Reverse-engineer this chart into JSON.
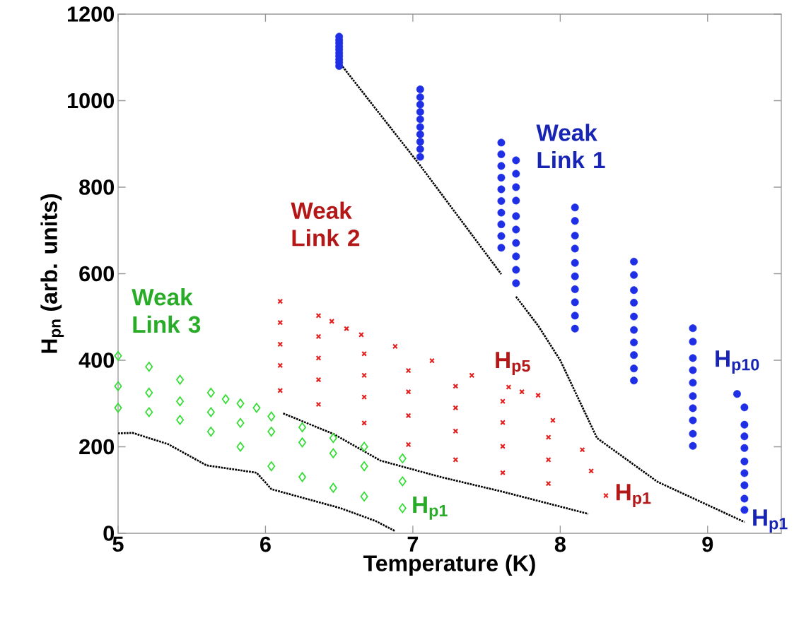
{
  "chart_data": {
    "type": "scatter",
    "xlabel": "Temperature (K)",
    "ylabel": "H$_{pn}$ (arb. units)",
    "xlim": [
      5,
      9.5
    ],
    "ylim": [
      0,
      1200
    ],
    "xticks": [
      5,
      6,
      7,
      8,
      9
    ],
    "yticks": [
      0,
      200,
      400,
      600,
      800,
      1000,
      1200
    ],
    "series": [
      {
        "name": "H$_{p1}$",
        "marker": "diamond",
        "color": "#33dd33",
        "x": [
          5,
          5.21,
          5.42,
          5.63,
          5.83,
          6.04,
          6.25,
          6.46,
          6.67,
          6.93
        ],
        "values": [
          290,
          280,
          262,
          235,
          200,
          155,
          130,
          105,
          85,
          58
        ]
      },
      {
        "marker": "diamond",
        "color": "#33dd33",
        "x": [
          5,
          5.21,
          5.42,
          5.63,
          5.83,
          6.04,
          6.25,
          6.46,
          6.67,
          6.93
        ],
        "values": [
          340,
          325,
          305,
          280,
          255,
          235,
          210,
          185,
          155,
          120
        ]
      },
      {
        "marker": "diamond",
        "color": "#33dd33",
        "x": [
          5,
          5.21,
          5.42,
          5.63,
          5.73,
          5.83,
          5.94,
          6.04,
          6.25,
          6.46,
          6.67,
          6.93
        ],
        "values": [
          410,
          385,
          355,
          325,
          310,
          300,
          290,
          270,
          245,
          220,
          200,
          173
        ]
      },
      {
        "type": "line",
        "line_style": "dotted",
        "color": "#000000",
        "x": [
          5,
          5.1,
          5.34,
          5.6,
          5.94,
          6.04,
          6.51,
          6.75,
          6.88
        ],
        "values": [
          231,
          232,
          206,
          157,
          140,
          102,
          58,
          28,
          5
        ]
      },
      {
        "name": "H$_{p1}$",
        "marker": "cross",
        "color": "#e61e1e",
        "x": [
          6.1,
          6.36,
          6.67,
          6.97,
          7.29,
          7.61,
          7.92,
          8.31
        ],
        "values": [
          330,
          298,
          255,
          205,
          170,
          140,
          115,
          87
        ]
      },
      {
        "marker": "cross",
        "color": "#e61e1e",
        "x": [
          6.1,
          6.36,
          6.67,
          6.97,
          7.29,
          7.61,
          7.92,
          8.21
        ],
        "values": [
          388,
          355,
          315,
          272,
          236,
          201,
          170,
          144
        ]
      },
      {
        "marker": "cross",
        "color": "#e61e1e",
        "x": [
          6.1,
          6.36,
          6.67,
          6.97,
          7.29,
          7.61,
          7.92,
          8.15
        ],
        "values": [
          437,
          405,
          365,
          327,
          290,
          256,
          222,
          193
        ]
      },
      {
        "marker": "cross",
        "color": "#e61e1e",
        "x": [
          6.1,
          6.36,
          6.67,
          6.97,
          7.29,
          7.61,
          7.95
        ],
        "values": [
          487,
          455,
          415,
          376,
          340,
          305,
          261
        ]
      },
      {
        "name": "H$_{p5}$",
        "marker": "cross",
        "color": "#e61e1e",
        "x": [
          6.1,
          6.36,
          6.45,
          6.55,
          6.65,
          6.88,
          7.13,
          7.4,
          7.65,
          7.74,
          7.85
        ],
        "values": [
          536,
          503,
          490,
          473,
          459,
          432,
          399,
          365,
          338,
          327,
          319
        ]
      },
      {
        "type": "line",
        "line_style": "dotted",
        "color": "#000000",
        "x": [
          6.12,
          6.46,
          6.78,
          7.19,
          7.61,
          8.19
        ],
        "values": [
          277,
          230,
          168,
          130,
          96,
          45
        ]
      },
      {
        "name": "H$_{p1}$",
        "marker": "circle",
        "color": "#1f2fe6",
        "x": [
          6.5,
          7.05,
          7.6,
          7.7,
          8.1,
          8.5,
          8.9,
          9.25
        ],
        "values": [
          1080,
          870,
          660,
          578,
          473,
          353,
          202,
          54
        ]
      },
      {
        "marker": "circle",
        "color": "#1f2fe6",
        "x": [
          6.5,
          7.05,
          7.6,
          7.7,
          8.1,
          8.5,
          8.9,
          9.25
        ],
        "values": [
          1088,
          888,
          687,
          609,
          503,
          381,
          230,
          80
        ]
      },
      {
        "marker": "circle",
        "color": "#1f2fe6",
        "x": [
          6.5,
          7.05,
          7.6,
          7.7,
          8.1,
          8.5,
          8.9,
          9.25
        ],
        "values": [
          1095,
          905,
          714,
          640,
          534,
          412,
          261,
          111
        ]
      },
      {
        "marker": "circle",
        "color": "#1f2fe6",
        "x": [
          6.5,
          7.05,
          7.6,
          7.7,
          8.1,
          8.5,
          8.9,
          9.25
        ],
        "values": [
          1103,
          922,
          741,
          671,
          564,
          441,
          289,
          139
        ]
      },
      {
        "marker": "circle",
        "color": "#1f2fe6",
        "x": [
          6.5,
          7.05,
          7.6,
          7.7,
          8.1,
          8.5,
          8.9,
          9.25
        ],
        "values": [
          1110,
          939,
          768,
          702,
          594,
          470,
          317,
          166
        ]
      },
      {
        "marker": "circle",
        "color": "#1f2fe6",
        "x": [
          6.5,
          7.05,
          7.6,
          7.7,
          8.1,
          8.5,
          8.9,
          9.25
        ],
        "values": [
          1118,
          957,
          795,
          733,
          625,
          501,
          348,
          197
        ]
      },
      {
        "marker": "circle",
        "color": "#1f2fe6",
        "x": [
          6.5,
          7.05,
          7.6,
          7.7,
          8.1,
          8.5,
          8.9,
          9.25
        ],
        "values": [
          1125,
          974,
          822,
          769,
          658,
          533,
          377,
          224
        ]
      },
      {
        "marker": "circle",
        "color": "#1f2fe6",
        "x": [
          6.5,
          7.05,
          7.6,
          7.7,
          8.1,
          8.5,
          8.9,
          9.25
        ],
        "values": [
          1133,
          991,
          849,
          800,
          688,
          562,
          405,
          251
        ]
      },
      {
        "marker": "circle",
        "color": "#1f2fe6",
        "x": [
          6.5,
          7.05,
          7.6,
          7.7,
          8.1,
          8.5,
          8.9,
          9.25
        ],
        "values": [
          1140,
          1008,
          876,
          831,
          722,
          597,
          443,
          291
        ]
      },
      {
        "name": "H$_{p10}$",
        "marker": "circle",
        "color": "#1f2fe6",
        "x": [
          6.5,
          7.05,
          7.6,
          7.7,
          8.1,
          8.5,
          8.9,
          9.2
        ],
        "values": [
          1148,
          1026,
          903,
          862,
          753,
          628,
          474,
          322
        ]
      },
      {
        "type": "line",
        "line_style": "dotted",
        "color": "#000000",
        "x": [
          6.5,
          7.05,
          7.6
        ],
        "values": [
          1089,
          850,
          599
        ]
      },
      {
        "type": "line",
        "line_style": "dotted",
        "color": "#000000",
        "x": [
          7.7,
          7.85,
          8.0,
          8.25,
          8.66,
          9.25
        ],
        "values": [
          547,
          480,
          400,
          220,
          119,
          26
        ]
      }
    ],
    "annotations": [
      "Weak Link 1",
      "Weak Link 2",
      "Weak Link 3"
    ]
  }
}
